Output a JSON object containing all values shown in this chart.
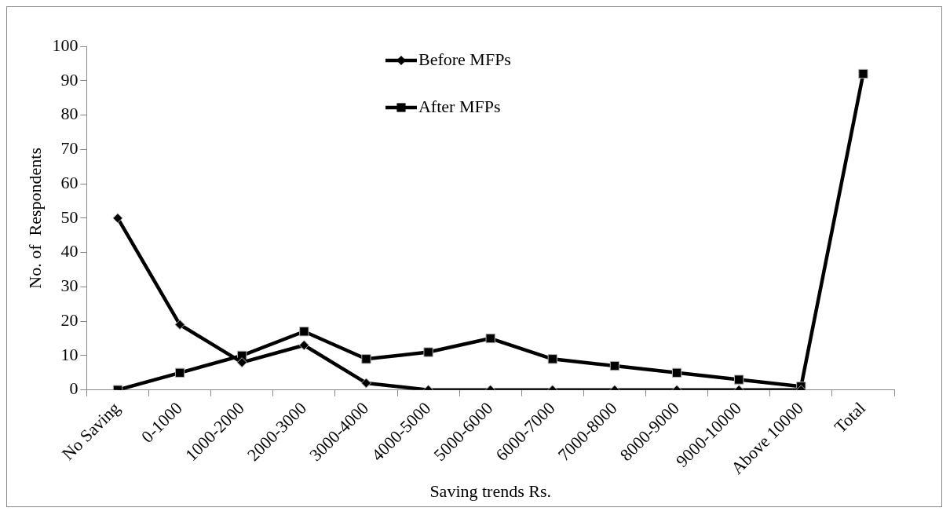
{
  "chart_data": {
    "type": "line",
    "xlabel": "Saving trends Rs.",
    "ylabel": "No. of  Respondents",
    "categories": [
      "No Saving",
      "0-1000",
      "1000-2000",
      "2000-3000",
      "3000-4000",
      "4000-5000",
      "5000-6000",
      "6000-7000",
      "7000-8000",
      "8000-9000",
      "9000-10000",
      "Above 10000",
      "Total"
    ],
    "series": [
      {
        "name": "Before MFPs",
        "color": "#000000",
        "marker": "diamond",
        "values": [
          50,
          19,
          8,
          13,
          2,
          0,
          0,
          0,
          0,
          0,
          0,
          0,
          null
        ]
      },
      {
        "name": "After MFPs",
        "color": "#000000",
        "marker": "square",
        "values": [
          0,
          5,
          10,
          17,
          9,
          11,
          15,
          9,
          7,
          5,
          3,
          1,
          92
        ]
      }
    ],
    "ylim": [
      0,
      100
    ],
    "yticks": [
      0,
      10,
      20,
      30,
      40,
      50,
      60,
      70,
      80,
      90,
      100
    ],
    "grid": false,
    "legend": "top",
    "line_style": "solid"
  }
}
